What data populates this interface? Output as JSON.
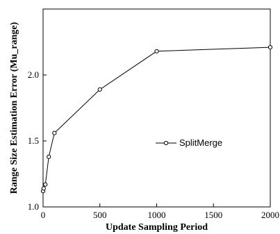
{
  "chart_data": {
    "type": "line",
    "xlabel": "Update Sampling Period",
    "ylabel": "Range Size Estimation Error (Mu_range)",
    "xlim": [
      0,
      2000
    ],
    "ylim": [
      1.0,
      2.5
    ],
    "xticks": [
      0,
      500,
      1000,
      1500,
      2000
    ],
    "xtick_labels": [
      "0",
      "500",
      "1000",
      "1500",
      "2000"
    ],
    "yticks": [
      1.0,
      1.5,
      2.0
    ],
    "ytick_labels": [
      "1.0",
      "1.5",
      "2.0"
    ],
    "grid": false,
    "legend_position": "right-center",
    "series": [
      {
        "name": "SplitMerge",
        "marker": "open-circle",
        "color": "#000000",
        "points": [
          {
            "x": 0,
            "y": 1.12
          },
          {
            "x": 5,
            "y": 1.14
          },
          {
            "x": 20,
            "y": 1.17
          },
          {
            "x": 50,
            "y": 1.38
          },
          {
            "x": 100,
            "y": 1.56
          },
          {
            "x": 500,
            "y": 1.89
          },
          {
            "x": 1000,
            "y": 2.18
          },
          {
            "x": 2000,
            "y": 2.21
          }
        ]
      }
    ]
  }
}
